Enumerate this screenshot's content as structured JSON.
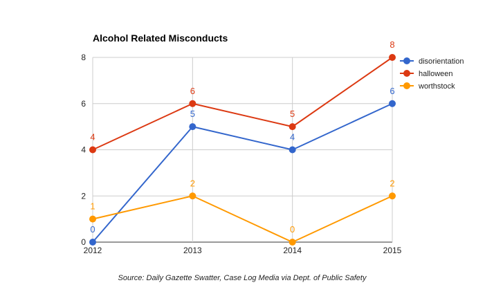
{
  "chart_data": {
    "type": "line",
    "title": "Alcohol Related Misconducts",
    "x": [
      "2012",
      "2013",
      "2014",
      "2015"
    ],
    "ylim": [
      0,
      8
    ],
    "yticks": [
      "0",
      "2",
      "4",
      "6",
      "8"
    ],
    "grid": true,
    "legend_position": "right",
    "series": [
      {
        "name": "disorientation",
        "values": [
          0,
          5,
          4,
          6
        ],
        "color": "#3366cc"
      },
      {
        "name": "halloween",
        "values": [
          4,
          6,
          5,
          8
        ],
        "color": "#dc3912"
      },
      {
        "name": "worthstock",
        "values": [
          1,
          2,
          0,
          2
        ],
        "color": "#ff9900"
      }
    ],
    "source": "Source: Daily Gazette Swatter, Case Log Media via Dept. of Public Safety"
  }
}
